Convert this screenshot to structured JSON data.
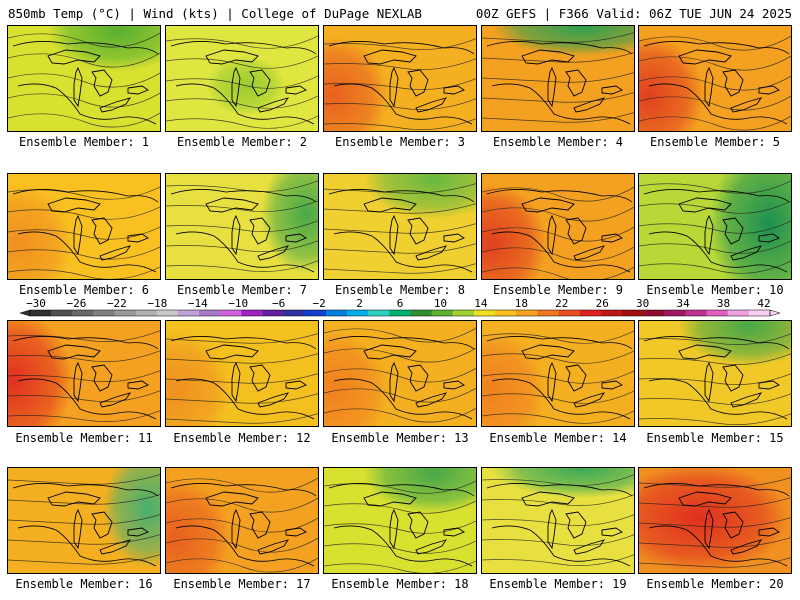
{
  "header": {
    "left": "850mb Temp (°C) | Wind (kts) | College of DuPage NEXLAB",
    "right": "00Z GEFS | F366 Valid: 06Z TUE JUN 24 2025"
  },
  "caption_prefix": "Ensemble Member: ",
  "members": [
    {
      "label": "Ensemble Member: 1",
      "base": "#d8e030",
      "accent": "#58b030",
      "style": "north-cool"
    },
    {
      "label": "Ensemble Member: 2",
      "base": "#e0e640",
      "accent": "#9ccc30",
      "style": "center-cool"
    },
    {
      "label": "Ensemble Member: 3",
      "base": "#f4b020",
      "accent": "#e86020",
      "style": "west-warm"
    },
    {
      "label": "Ensemble Member: 4",
      "base": "#f4a020",
      "accent": "#2ca050",
      "style": "north-cold"
    },
    {
      "label": "Ensemble Member: 5",
      "base": "#f4a020",
      "accent": "#e04020",
      "style": "west-warm"
    },
    {
      "label": "Ensemble Member: 6",
      "base": "#f8c020",
      "accent": "#f09020",
      "style": "west-warm"
    },
    {
      "label": "Ensemble Member: 7",
      "base": "#e8e040",
      "accent": "#48a848",
      "style": "east-cool"
    },
    {
      "label": "Ensemble Member: 8",
      "base": "#f0d030",
      "accent": "#68b840",
      "style": "north-cool"
    },
    {
      "label": "Ensemble Member: 9",
      "base": "#f4a020",
      "accent": "#e04020",
      "style": "west-warm"
    },
    {
      "label": "Ensemble Member: 10",
      "base": "#b8d838",
      "accent": "#1c9050",
      "style": "east-cold"
    },
    {
      "label": "Ensemble Member: 11",
      "base": "#f4a020",
      "accent": "#e03020",
      "style": "west-hot"
    },
    {
      "label": "Ensemble Member: 12",
      "base": "#f4c020",
      "accent": "#f09020",
      "style": "west-warm"
    },
    {
      "label": "Ensemble Member: 13",
      "base": "#f4b020",
      "accent": "#f08020",
      "style": "west-warm"
    },
    {
      "label": "Ensemble Member: 14",
      "base": "#f4b020",
      "accent": "#f08020",
      "style": "west-warm"
    },
    {
      "label": "Ensemble Member: 15",
      "base": "#f0c828",
      "accent": "#48a848",
      "style": "north-cool"
    },
    {
      "label": "Ensemble Member: 16",
      "base": "#f4b020",
      "accent": "#48b070",
      "style": "east-cool"
    },
    {
      "label": "Ensemble Member: 17",
      "base": "#f4a020",
      "accent": "#e86020",
      "style": "west-warm"
    },
    {
      "label": "Ensemble Member: 18",
      "base": "#d8e030",
      "accent": "#48a848",
      "style": "north-cool"
    },
    {
      "label": "Ensemble Member: 19",
      "base": "#e8e040",
      "accent": "#38a858",
      "style": "north-cold"
    },
    {
      "label": "Ensemble Member: 20",
      "base": "#f09020",
      "accent": "#e03020",
      "style": "north-hot"
    }
  ],
  "colorbar": {
    "labels": [
      "−30",
      "−26",
      "−22",
      "−18",
      "−14",
      "−10",
      "−6",
      "−2",
      "2",
      "6",
      "10",
      "14",
      "18",
      "22",
      "26",
      "30",
      "34",
      "38",
      "42"
    ],
    "colors": [
      "#303030",
      "#505050",
      "#686868",
      "#808080",
      "#989898",
      "#b0b0b0",
      "#c8c8c8",
      "#c0a0d8",
      "#a878c8",
      "#d060e0",
      "#a020c0",
      "#6020a0",
      "#3030a0",
      "#1040d0",
      "#0080e0",
      "#00b0e8",
      "#30d0c0",
      "#00b070",
      "#309030",
      "#60b030",
      "#a0d030",
      "#f0e020",
      "#f8c020",
      "#f8a020",
      "#f07820",
      "#e85020",
      "#e02020",
      "#c01818",
      "#a01010",
      "#900c30",
      "#a01860",
      "#c03090",
      "#e060c0",
      "#f0a0e0",
      "#f8d0f0"
    ]
  }
}
